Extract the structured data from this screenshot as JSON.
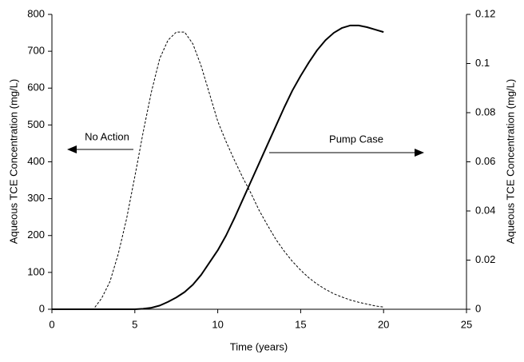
{
  "chart_data": {
    "type": "line",
    "x_label": "Time (years)",
    "y_label": "Aqueous TCE Concentration (mg/L)",
    "y2_label": "Aqueous TCE Concentration (mg/L)",
    "x": [
      0,
      0.5,
      1,
      1.5,
      2,
      2.5,
      3,
      3.5,
      4,
      4.5,
      5,
      5.5,
      6,
      6.5,
      7,
      7.5,
      8,
      8.5,
      9,
      9.5,
      10,
      10.5,
      11,
      11.5,
      12,
      12.5,
      13,
      13.5,
      14,
      14.5,
      15,
      15.5,
      16,
      16.5,
      17,
      17.5,
      18,
      18.5,
      19,
      19.5,
      20
    ],
    "series": [
      {
        "name": "No Action",
        "color": "#000000",
        "dashed": true,
        "axis": "y",
        "values": [
          0,
          0,
          0,
          0,
          0,
          0,
          30,
          75,
          150,
          245,
          360,
          480,
          590,
          680,
          730,
          752,
          752,
          720,
          660,
          585,
          510,
          455,
          405,
          358,
          315,
          268,
          228,
          190,
          158,
          130,
          106,
          85,
          68,
          54,
          42,
          33,
          25,
          19,
          14,
          9,
          6
        ]
      },
      {
        "name": "Pump Case",
        "color": "#000000",
        "dashed": false,
        "axis": "y2",
        "values": [
          0,
          0,
          0,
          0,
          0,
          0,
          0,
          0,
          0,
          0,
          0,
          0.0002,
          0.0006,
          0.0015,
          0.003,
          0.0048,
          0.007,
          0.01,
          0.014,
          0.019,
          0.024,
          0.03,
          0.037,
          0.0445,
          0.052,
          0.0595,
          0.067,
          0.0745,
          0.082,
          0.089,
          0.095,
          0.1005,
          0.1055,
          0.1095,
          0.1125,
          0.1145,
          0.1155,
          0.1155,
          0.1148,
          0.1138,
          0.1128
        ]
      }
    ],
    "xlim": [
      0,
      25
    ],
    "xticks": [
      0,
      5,
      10,
      15,
      20,
      25
    ],
    "ylim": [
      0,
      800
    ],
    "yticks": [
      0,
      100,
      200,
      300,
      400,
      500,
      600,
      700,
      800
    ],
    "y2lim": [
      0,
      0.12
    ],
    "y2ticks": [
      0,
      0.02,
      0.04,
      0.06,
      0.08,
      0.1,
      0.12
    ],
    "grid": false
  }
}
